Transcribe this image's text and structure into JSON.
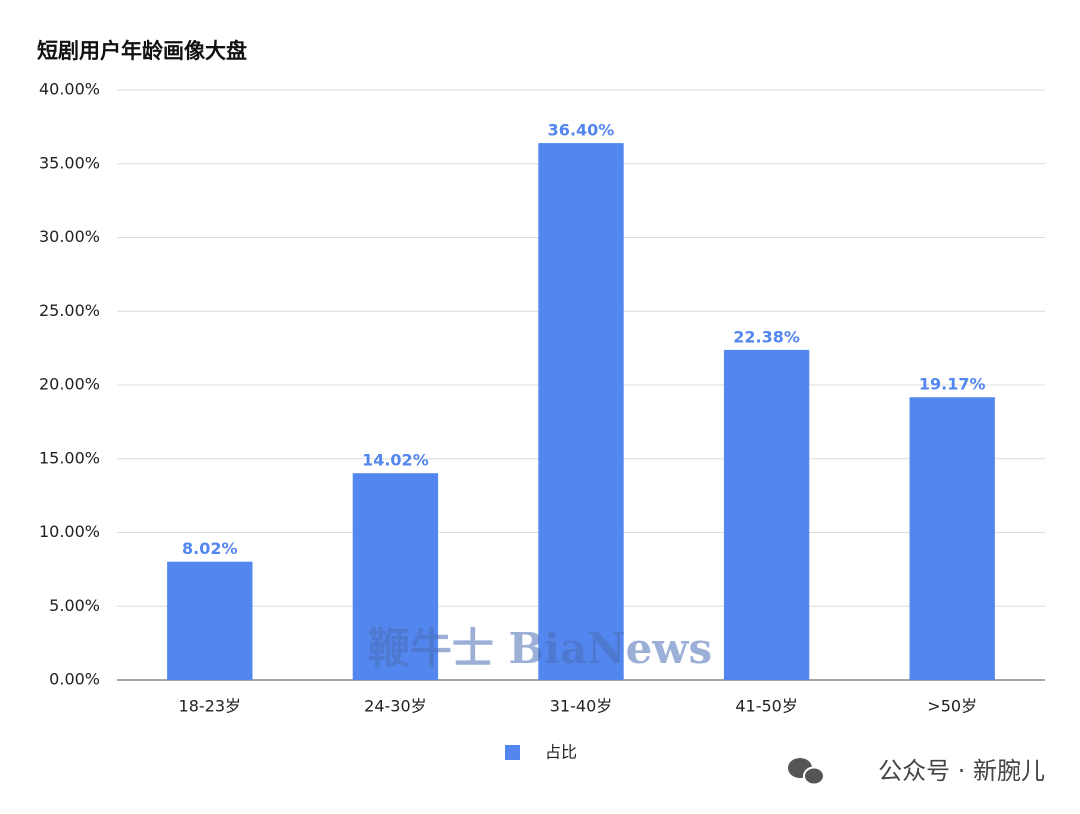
{
  "chart_data": {
    "type": "bar",
    "title": "短剧用户年龄画像大盘",
    "categories": [
      "18-23岁",
      "24-30岁",
      "31-40岁",
      "41-50岁",
      ">50岁"
    ],
    "series": [
      {
        "name": "占比",
        "color": "#5386ee",
        "values": [
          8.02,
          14.02,
          36.4,
          22.38,
          19.17
        ],
        "value_labels": [
          "8.02%",
          "14.02%",
          "36.40%",
          "22.38%",
          "19.17%"
        ]
      }
    ],
    "ylim": [
      0,
      40
    ],
    "yticks": [
      {
        "value": 0,
        "label": "0.00%"
      },
      {
        "value": 5,
        "label": "5.00%"
      },
      {
        "value": 10,
        "label": "10.00%"
      },
      {
        "value": 15,
        "label": "15.00%"
      },
      {
        "value": 20,
        "label": "20.00%"
      },
      {
        "value": 25,
        "label": "25.00%"
      },
      {
        "value": 30,
        "label": "30.00%"
      },
      {
        "value": 35,
        "label": "35.00%"
      },
      {
        "value": 40,
        "label": "40.00%"
      }
    ],
    "grid": true,
    "legend": "bottom",
    "annotations": [
      "鞭牛士 BiaNews",
      "公众号 · 新腕儿"
    ]
  }
}
